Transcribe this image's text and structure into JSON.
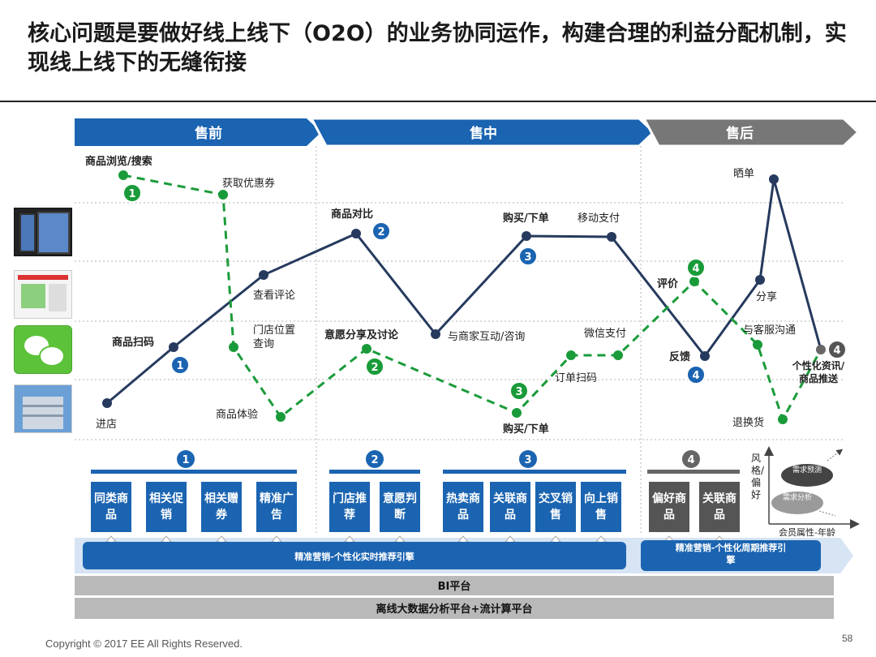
{
  "title": "核心问题是要做好线上线下（O2O）的业务协同运作，构建合理的利益分配机制，实现线上线下的无缝衔接",
  "phases": [
    "售前",
    "售中",
    "售后"
  ],
  "colors": {
    "blue": "#1b64b1",
    "navy": "#263a5e",
    "green": "#1a9b3a",
    "gray": "#6d6d6d"
  },
  "journey_labels": {
    "browse": "商品浏览/搜索",
    "coupon": "获取优惠券",
    "compare": "商品对比",
    "buy_top": "购买/下单",
    "mobile_pay": "移动支付",
    "review_check": "查看评论",
    "scan_goods": "商品扫码",
    "store_loc": "门店位置查询",
    "share_discuss": "意愿分享及讨论",
    "merchant": "与商家互动/咨询",
    "wechat_pay": "微信支付",
    "order_scan": "订单扫码",
    "experience": "商品体验",
    "enter_store": "进店",
    "buy_bottom": "购买/下单",
    "sunshine": "晒单",
    "evaluate": "评价",
    "share": "分享",
    "customer_service": "与客服沟通",
    "feedback": "反馈",
    "personal_push": "个性化资讯/商品推送",
    "return": "退换货"
  },
  "step_numbers": [
    "1",
    "2",
    "3",
    "4"
  ],
  "channel_icons": [
    "tablet-phone-icon",
    "website-icon",
    "wechat-icon",
    "store-building-icon"
  ],
  "group_numbers": [
    "1",
    "2",
    "3",
    "4"
  ],
  "blocks": {
    "g1": [
      "同类商品",
      "相关促销",
      "相关赠券",
      "精准广告"
    ],
    "g2": [
      "门店推荐",
      "意愿判断"
    ],
    "g3": [
      "热卖商品",
      "关联商品",
      "交叉销售",
      "向上销售"
    ],
    "g4": [
      "偏好商品",
      "关联商品"
    ]
  },
  "engine_left": "精准营销-个性化实时推荐引擎",
  "engine_right": "精准营销-个性化周期推荐引擎",
  "bi_platform": "BI平台",
  "bigdata_platform": "离线大数据分析平台+流计算平台",
  "mini_chart": {
    "y_label": "风格/偏好",
    "x_label": "会员属性-年龄",
    "ellipse1": "需求预测",
    "ellipse2": "需求分析"
  },
  "footer": "Copyright © 2017 EE All Rights Reserved.",
  "page": "58"
}
